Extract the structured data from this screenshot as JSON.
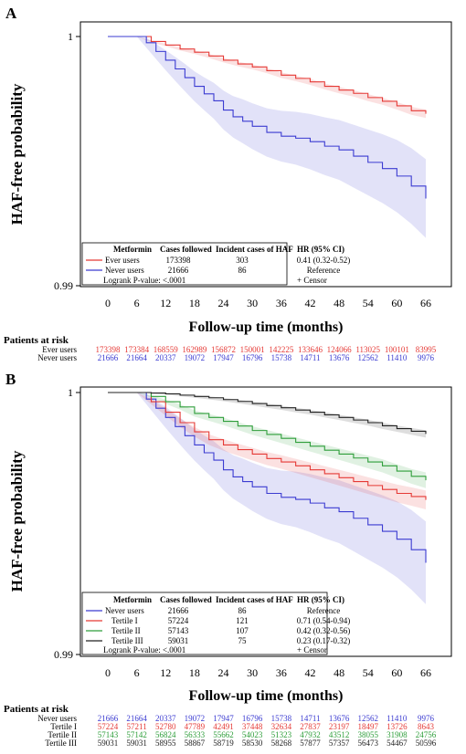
{
  "chart_data": [
    {
      "type": "line",
      "panel_label": "A",
      "xlabel": "Follow-up time (months)",
      "ylabel": "HAF-free probability",
      "xticks": [
        "0",
        "6",
        "12",
        "18",
        "24",
        "30",
        "36",
        "42",
        "48",
        "54",
        "60",
        "66"
      ],
      "xlim": [
        0,
        66
      ],
      "yticks": [
        "1",
        "0.99"
      ],
      "ylim": [
        0.99,
        1
      ],
      "series": [
        {
          "name": "Ever users",
          "color": "#e53935",
          "x": [
            0,
            3,
            6,
            9,
            12,
            15,
            18,
            21,
            24,
            27,
            30,
            33,
            36,
            39,
            42,
            45,
            48,
            51,
            54,
            57,
            60,
            63,
            66
          ],
          "y": [
            1,
            1,
            1,
            0.9998,
            0.99966,
            0.9995,
            0.99937,
            0.99922,
            0.99905,
            0.9989,
            0.99878,
            0.99863,
            0.99845,
            0.99832,
            0.99818,
            0.998,
            0.99785,
            0.99772,
            0.99755,
            0.9974,
            0.99722,
            0.99702,
            0.9969
          ],
          "ci_halfwidth": [
            0,
            0,
            0,
            4e-05,
            5e-05,
            6e-05,
            7e-05,
            8e-05,
            9e-05,
            9e-05,
            0.0001,
            0.0001,
            0.00011,
            0.00011,
            0.00012,
            0.00012,
            0.00013,
            0.00013,
            0.00014,
            0.00014,
            0.00015,
            0.00016,
            0.00017
          ]
        },
        {
          "name": "Never users",
          "color": "#3b3bd1",
          "x": [
            0,
            3,
            6,
            8,
            10,
            12,
            14,
            16,
            18,
            20,
            22,
            24,
            26,
            28,
            30,
            33,
            36,
            39,
            42,
            45,
            48,
            51,
            54,
            57,
            60,
            63,
            66
          ],
          "y": [
            1,
            1,
            1,
            0.99975,
            0.9994,
            0.99905,
            0.9987,
            0.99835,
            0.998,
            0.9977,
            0.99742,
            0.99705,
            0.99678,
            0.9966,
            0.9964,
            0.99615,
            0.996,
            0.99592,
            0.99578,
            0.9956,
            0.99545,
            0.9952,
            0.99495,
            0.9947,
            0.9944,
            0.994,
            0.9935
          ],
          "ci_halfwidth": [
            0,
            0,
            0,
            0.0002,
            0.0003,
            0.0004,
            0.00048,
            0.00055,
            0.0006,
            0.00066,
            0.00072,
            0.00078,
            0.00083,
            0.00088,
            0.00092,
            0.00097,
            0.00102,
            0.00106,
            0.00111,
            0.00116,
            0.0012,
            0.00126,
            0.00132,
            0.00138,
            0.00145,
            0.00152,
            0.00158
          ]
        }
      ],
      "legend": {
        "headers": [
          "Metformin",
          "Cases followed",
          "Incident cases of HAF",
          "HR (95% CI)"
        ],
        "rows": [
          {
            "label": "Ever users",
            "color": "#e53935",
            "cases": "173398",
            "incident": "303",
            "hr": "0.41 (0.32-0.52)"
          },
          {
            "label": "Never users",
            "color": "#3b3bd1",
            "cases": "21666",
            "incident": "86",
            "hr": "Reference"
          }
        ],
        "logrank": "Logrank P-value: <.0001",
        "censor": "+ Censor"
      },
      "at_risk": {
        "title": "Patients at risk",
        "rows": [
          {
            "label": "Ever users",
            "color": "#e53935",
            "values": [
              "173398",
              "173384",
              "168559",
              "162989",
              "156872",
              "150001",
              "142225",
              "133646",
              "124066",
              "113025",
              "100101",
              "83995"
            ]
          },
          {
            "label": "Never users",
            "color": "#3b3bd1",
            "values": [
              "21666",
              "21664",
              "20337",
              "19072",
              "17947",
              "16796",
              "15738",
              "14711",
              "13676",
              "12562",
              "11410",
              "9976"
            ]
          }
        ]
      }
    },
    {
      "type": "line",
      "panel_label": "B",
      "xlabel": "Follow-up time (months)",
      "ylabel": "HAF-free probability",
      "xticks": [
        "0",
        "6",
        "12",
        "18",
        "24",
        "30",
        "36",
        "42",
        "48",
        "54",
        "60",
        "66"
      ],
      "xlim": [
        0,
        66
      ],
      "yticks": [
        "1",
        "0.99"
      ],
      "ylim": [
        0.99,
        1
      ],
      "series": [
        {
          "name": "Never users",
          "color": "#3b3bd1",
          "x": [
            0,
            3,
            6,
            8,
            10,
            12,
            14,
            16,
            18,
            20,
            22,
            24,
            26,
            28,
            30,
            33,
            36,
            39,
            42,
            45,
            48,
            51,
            54,
            57,
            60,
            63,
            66
          ],
          "y": [
            1,
            1,
            1,
            0.99975,
            0.9994,
            0.99905,
            0.9987,
            0.99835,
            0.998,
            0.9977,
            0.99742,
            0.99705,
            0.99678,
            0.9966,
            0.9964,
            0.99615,
            0.996,
            0.99592,
            0.99578,
            0.9956,
            0.99545,
            0.9952,
            0.99495,
            0.9947,
            0.9944,
            0.994,
            0.9935
          ],
          "ci_halfwidth": [
            0,
            0,
            0,
            0.0002,
            0.0003,
            0.0004,
            0.00048,
            0.00055,
            0.0006,
            0.00066,
            0.00072,
            0.00078,
            0.00083,
            0.00088,
            0.00092,
            0.00097,
            0.00102,
            0.00106,
            0.00111,
            0.00116,
            0.0012,
            0.00126,
            0.00132,
            0.00138,
            0.00145,
            0.00152,
            0.00158
          ]
        },
        {
          "name": "Tertile I",
          "color": "#e53935",
          "x": [
            0,
            3,
            6,
            9,
            12,
            15,
            18,
            21,
            24,
            27,
            30,
            33,
            36,
            39,
            42,
            45,
            48,
            51,
            54,
            57,
            60,
            63,
            66
          ],
          "y": [
            1,
            1,
            1,
            0.99965,
            0.99925,
            0.99885,
            0.9985,
            0.9982,
            0.998,
            0.99782,
            0.99765,
            0.99748,
            0.99735,
            0.9972,
            0.99705,
            0.9969,
            0.99675,
            0.9966,
            0.99645,
            0.9963,
            0.99615,
            0.99603,
            0.9959
          ],
          "ci_halfwidth": [
            0,
            0,
            0,
            0.0001,
            0.00013,
            0.00016,
            0.00018,
            0.0002,
            0.00022,
            0.00023,
            0.00024,
            0.00025,
            0.00026,
            0.00027,
            0.00028,
            0.00029,
            0.0003,
            0.00031,
            0.00032,
            0.00033,
            0.00034,
            0.00035,
            0.00036
          ]
        },
        {
          "name": "Tertile II",
          "color": "#2e9e3a",
          "x": [
            0,
            3,
            6,
            9,
            12,
            15,
            18,
            21,
            24,
            27,
            30,
            33,
            36,
            39,
            42,
            45,
            48,
            51,
            54,
            57,
            60,
            63,
            66
          ],
          "y": [
            1,
            1,
            1,
            0.99985,
            0.99965,
            0.99945,
            0.9992,
            0.99905,
            0.9989,
            0.99872,
            0.99855,
            0.9984,
            0.99825,
            0.9981,
            0.99795,
            0.9978,
            0.99765,
            0.9975,
            0.99735,
            0.9972,
            0.997,
            0.9968,
            0.99665
          ],
          "ci_halfwidth": [
            0,
            0,
            0,
            5e-05,
            8e-05,
            0.0001,
            0.00012,
            0.00013,
            0.00014,
            0.00015,
            0.00016,
            0.00017,
            0.00018,
            0.00019,
            0.0002,
            0.00021,
            0.00022,
            0.00023,
            0.00024,
            0.00025,
            0.00026,
            0.00028,
            0.0003
          ]
        },
        {
          "name": "Tertile III",
          "color": "#222222",
          "x": [
            0,
            3,
            6,
            9,
            12,
            15,
            18,
            21,
            24,
            27,
            30,
            33,
            36,
            39,
            42,
            45,
            48,
            51,
            54,
            57,
            60,
            63,
            66
          ],
          "y": [
            1,
            1,
            1,
            0.99998,
            0.99995,
            0.9999,
            0.99985,
            0.9998,
            0.99973,
            0.99966,
            0.99958,
            0.9995,
            0.99942,
            0.99933,
            0.99925,
            0.99915,
            0.99905,
            0.99895,
            0.99885,
            0.99873,
            0.99862,
            0.99852,
            0.99842
          ],
          "ci_halfwidth": [
            0,
            0,
            0,
            2e-05,
            3e-05,
            4e-05,
            5e-05,
            6e-05,
            6e-05,
            7e-05,
            7e-05,
            8e-05,
            8e-05,
            9e-05,
            9e-05,
            0.0001,
            0.0001,
            0.00011,
            0.00011,
            0.00012,
            0.00012,
            0.00013,
            0.00014
          ]
        }
      ],
      "legend": {
        "headers": [
          "Metformin",
          "Cases followed",
          "Incident cases of HAF",
          "HR (95% CI)"
        ],
        "rows": [
          {
            "label": "Never users",
            "color": "#3b3bd1",
            "cases": "21666",
            "incident": "86",
            "hr": "Reference"
          },
          {
            "label": "Tertile I",
            "color": "#e53935",
            "cases": "57224",
            "incident": "121",
            "hr": "0.71 (0.54-0.94)"
          },
          {
            "label": "Tertile II",
            "color": "#2e9e3a",
            "cases": "57143",
            "incident": "107",
            "hr": "0.42 (0.32-0.56)"
          },
          {
            "label": "Tertile III",
            "color": "#222222",
            "cases": "59031",
            "incident": "75",
            "hr": "0.23 (0.17-0.32)"
          }
        ],
        "logrank": "Logrank P-value: <.0001",
        "censor": "+ Censor"
      },
      "at_risk": {
        "title": "Patients at risk",
        "rows": [
          {
            "label": "Never users",
            "color": "#3b3bd1",
            "values": [
              "21666",
              "21664",
              "20337",
              "19072",
              "17947",
              "16796",
              "15738",
              "14711",
              "13676",
              "12562",
              "11410",
              "9976"
            ]
          },
          {
            "label": "Tertile I",
            "color": "#e53935",
            "values": [
              "57224",
              "57211",
              "52780",
              "47789",
              "42491",
              "37448",
              "32634",
              "27837",
              "23197",
              "18497",
              "13726",
              "8643"
            ]
          },
          {
            "label": "Tertile II",
            "color": "#2e9e3a",
            "values": [
              "57143",
              "57142",
              "56824",
              "56333",
              "55662",
              "54023",
              "51323",
              "47932",
              "43512",
              "38055",
              "31908",
              "24756"
            ]
          },
          {
            "label": "Tertile III",
            "color": "#222222",
            "values": [
              "59031",
              "59031",
              "58955",
              "58867",
              "58719",
              "58530",
              "58268",
              "57877",
              "57357",
              "56473",
              "54467",
              "50596"
            ]
          }
        ]
      }
    }
  ]
}
